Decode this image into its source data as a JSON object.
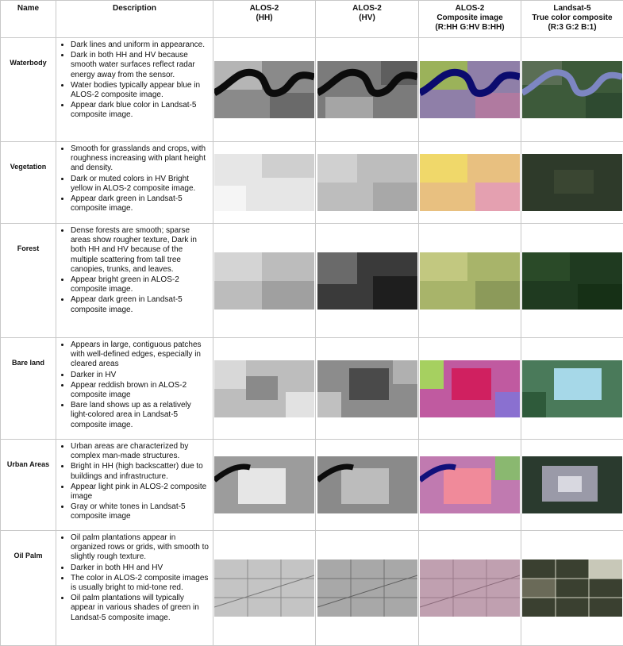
{
  "headers": {
    "name": "Name",
    "description": "Description",
    "hh": [
      "ALOS-2",
      "(HH)"
    ],
    "hv": [
      "ALOS-2",
      "(HV)"
    ],
    "composite": [
      "ALOS-2",
      "Composite image",
      "(R:HH G:HV B:HH)"
    ],
    "landsat": [
      "Landsat-5",
      "True color composite",
      "(R:3 G:2 B:1)"
    ]
  },
  "rows": [
    {
      "name": "Waterbody",
      "bullets": [
        "Dark lines and uniform in appearance.",
        "Dark in both HH and HV because smooth water surfaces reflect radar energy away from the sensor.",
        "Water bodies typically appear blue in  ALOS-2 composite image.",
        "Appear dark blue color in Landsat-5 composite image."
      ]
    },
    {
      "name": "Vegetation",
      "bullets": [
        "Smooth for grasslands and crops, with roughness increasing with plant height and density.",
        "Dark or muted colors in HV Bright yellow in ALOS-2 composite image.",
        "Appear dark green in Landsat-5 composite image."
      ]
    },
    {
      "name": "Forest",
      "bullets": [
        "Dense forests are smooth; sparse areas show rougher texture, Dark in both HH and HV because of the multiple scattering from tall tree canopies, trunks, and leaves.",
        "Appear bright green in ALOS-2 composite image.",
        "Appear dark green in Landsat-5 composite image."
      ]
    },
    {
      "name": "Bare land",
      "bullets": [
        "Appears in large, contiguous patches with well-defined edges, especially in cleared areas",
        "Darker in HV",
        "Appear reddish brown in ALOS-2 composite image",
        "Bare land  shows up as a relatively light-colored area in Landsat-5 composite image."
      ]
    },
    {
      "name": "Urban Areas",
      "bullets": [
        "Urban areas are characterized by complex man-made structures.",
        "Bright in HH (high backscatter) due to buildings and infrastructure.",
        "Appear light pink  in ALOS-2 composite image",
        "Gray or white tones in Landsat-5 composite image"
      ]
    },
    {
      "name": "Oil Palm",
      "bullets": [
        "Oil palm plantations appear in organized rows or grids, with smooth to slightly rough texture.",
        "Darker in both HH and HV",
        "The color in ALOS-2 composite images is usually bright to mid-tone red.",
        "Oil palm plantations will typically appear in various shades of green in Landsat-5 composite image."
      ]
    }
  ]
}
